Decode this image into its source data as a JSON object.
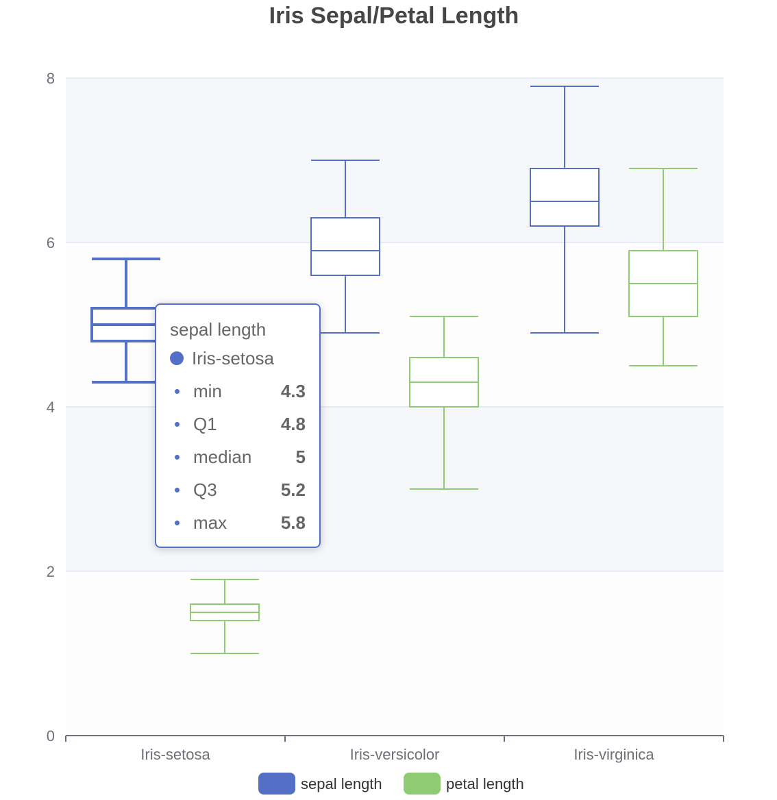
{
  "colors": {
    "sepal": "#5470c6",
    "petal": "#91cc75",
    "band": "#f5f7fb",
    "grid": "#e0e6f1",
    "axis": "#6e7079"
  },
  "chart_data": {
    "type": "boxplot",
    "title": "Iris Sepal/Petal Length",
    "categories": [
      "Iris-setosa",
      "Iris-versicolor",
      "Iris-virginica"
    ],
    "ylim": [
      0,
      8
    ],
    "yticks": [
      "0",
      "2",
      "4",
      "6",
      "8"
    ],
    "grid": true,
    "legend_position": "bottom",
    "series": [
      {
        "name": "sepal length",
        "color": "#5470c6",
        "boxes": [
          {
            "min": 4.3,
            "q1": 4.8,
            "median": 5.0,
            "q3": 5.2,
            "max": 5.8
          },
          {
            "min": 4.9,
            "q1": 5.6,
            "median": 5.9,
            "q3": 6.3,
            "max": 7.0
          },
          {
            "min": 4.9,
            "q1": 6.2,
            "median": 6.5,
            "q3": 6.9,
            "max": 7.9
          }
        ]
      },
      {
        "name": "petal length",
        "color": "#91cc75",
        "boxes": [
          {
            "min": 1.0,
            "q1": 1.4,
            "median": 1.5,
            "q3": 1.6,
            "max": 1.9
          },
          {
            "min": 3.0,
            "q1": 4.0,
            "median": 4.3,
            "q3": 4.6,
            "max": 5.1
          },
          {
            "min": 4.5,
            "q1": 5.1,
            "median": 5.5,
            "q3": 5.9,
            "max": 6.9
          }
        ]
      }
    ]
  },
  "tooltip": {
    "series_name": "sepal length",
    "category": "Iris-setosa",
    "rows": [
      {
        "label": "min",
        "value": "4.3"
      },
      {
        "label": "Q1",
        "value": "4.8"
      },
      {
        "label": "median",
        "value": "5"
      },
      {
        "label": "Q3",
        "value": "5.2"
      },
      {
        "label": "max",
        "value": "5.8"
      }
    ]
  }
}
